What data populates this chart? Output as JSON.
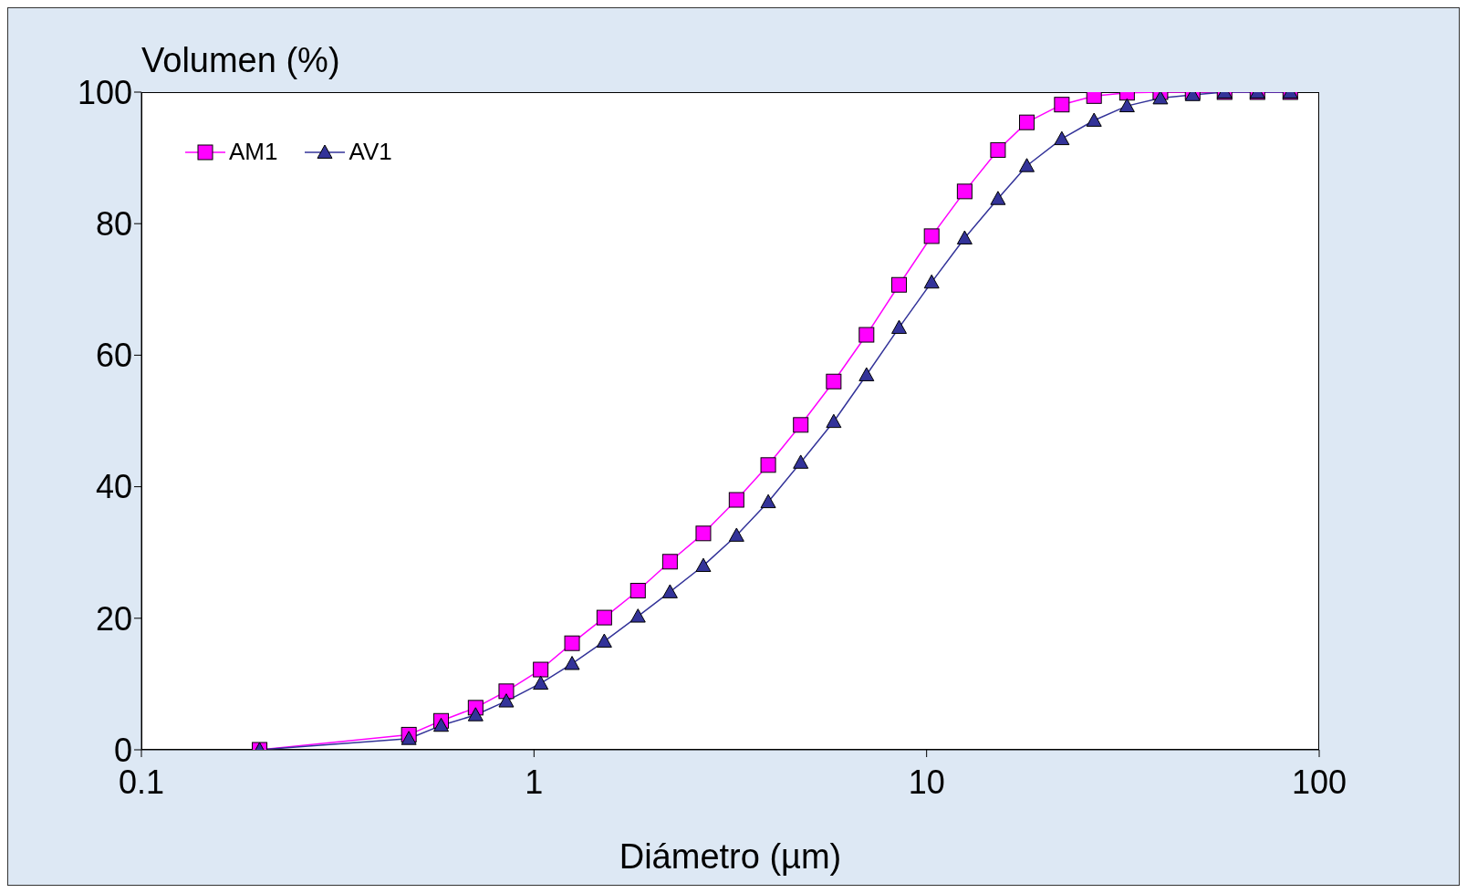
{
  "chart_data": {
    "type": "line",
    "xlabel": "Diámetro (µm)",
    "ylabel": "Volumen (%)",
    "x": [
      0.2,
      0.48,
      0.58,
      0.71,
      0.85,
      1.04,
      1.25,
      1.51,
      1.84,
      2.22,
      2.7,
      3.28,
      3.95,
      4.78,
      5.8,
      7.03,
      8.51,
      10.3,
      12.5,
      15.2,
      18,
      22.1,
      26.7,
      32.4,
      39.4,
      47.6,
      57.4,
      69.6,
      84.4
    ],
    "series": [
      {
        "name": "AM1",
        "color": "#ff00ff",
        "marker": "square",
        "values": [
          0,
          2.3,
          4.4,
          6.4,
          8.9,
          12.2,
          16.2,
          20.1,
          24.2,
          28.6,
          32.9,
          38,
          43.3,
          49.4,
          56,
          63.1,
          70.7,
          78.1,
          84.9,
          91.2,
          95.4,
          98.1,
          99.4,
          99.9,
          100,
          100,
          100,
          100,
          100
        ]
      },
      {
        "name": "AV1",
        "color": "#333399",
        "marker": "triangle",
        "values": [
          0,
          1.7,
          3.7,
          5.3,
          7.4,
          10.1,
          13.1,
          16.5,
          20.3,
          24,
          28,
          32.6,
          37.7,
          43.7,
          49.9,
          57,
          64.2,
          71.1,
          77.8,
          83.8,
          88.8,
          92.9,
          95.7,
          97.9,
          99.1,
          99.6,
          100,
          100,
          100
        ]
      }
    ],
    "log": "x",
    "xlim": [
      0.1,
      100
    ],
    "xticks": [
      0.1,
      1,
      10,
      100
    ],
    "ylim": [
      0,
      100
    ],
    "yticks": [
      0,
      20,
      40,
      60,
      80,
      100
    ],
    "grid": false,
    "legend": "top left",
    "line_style": "solid"
  }
}
